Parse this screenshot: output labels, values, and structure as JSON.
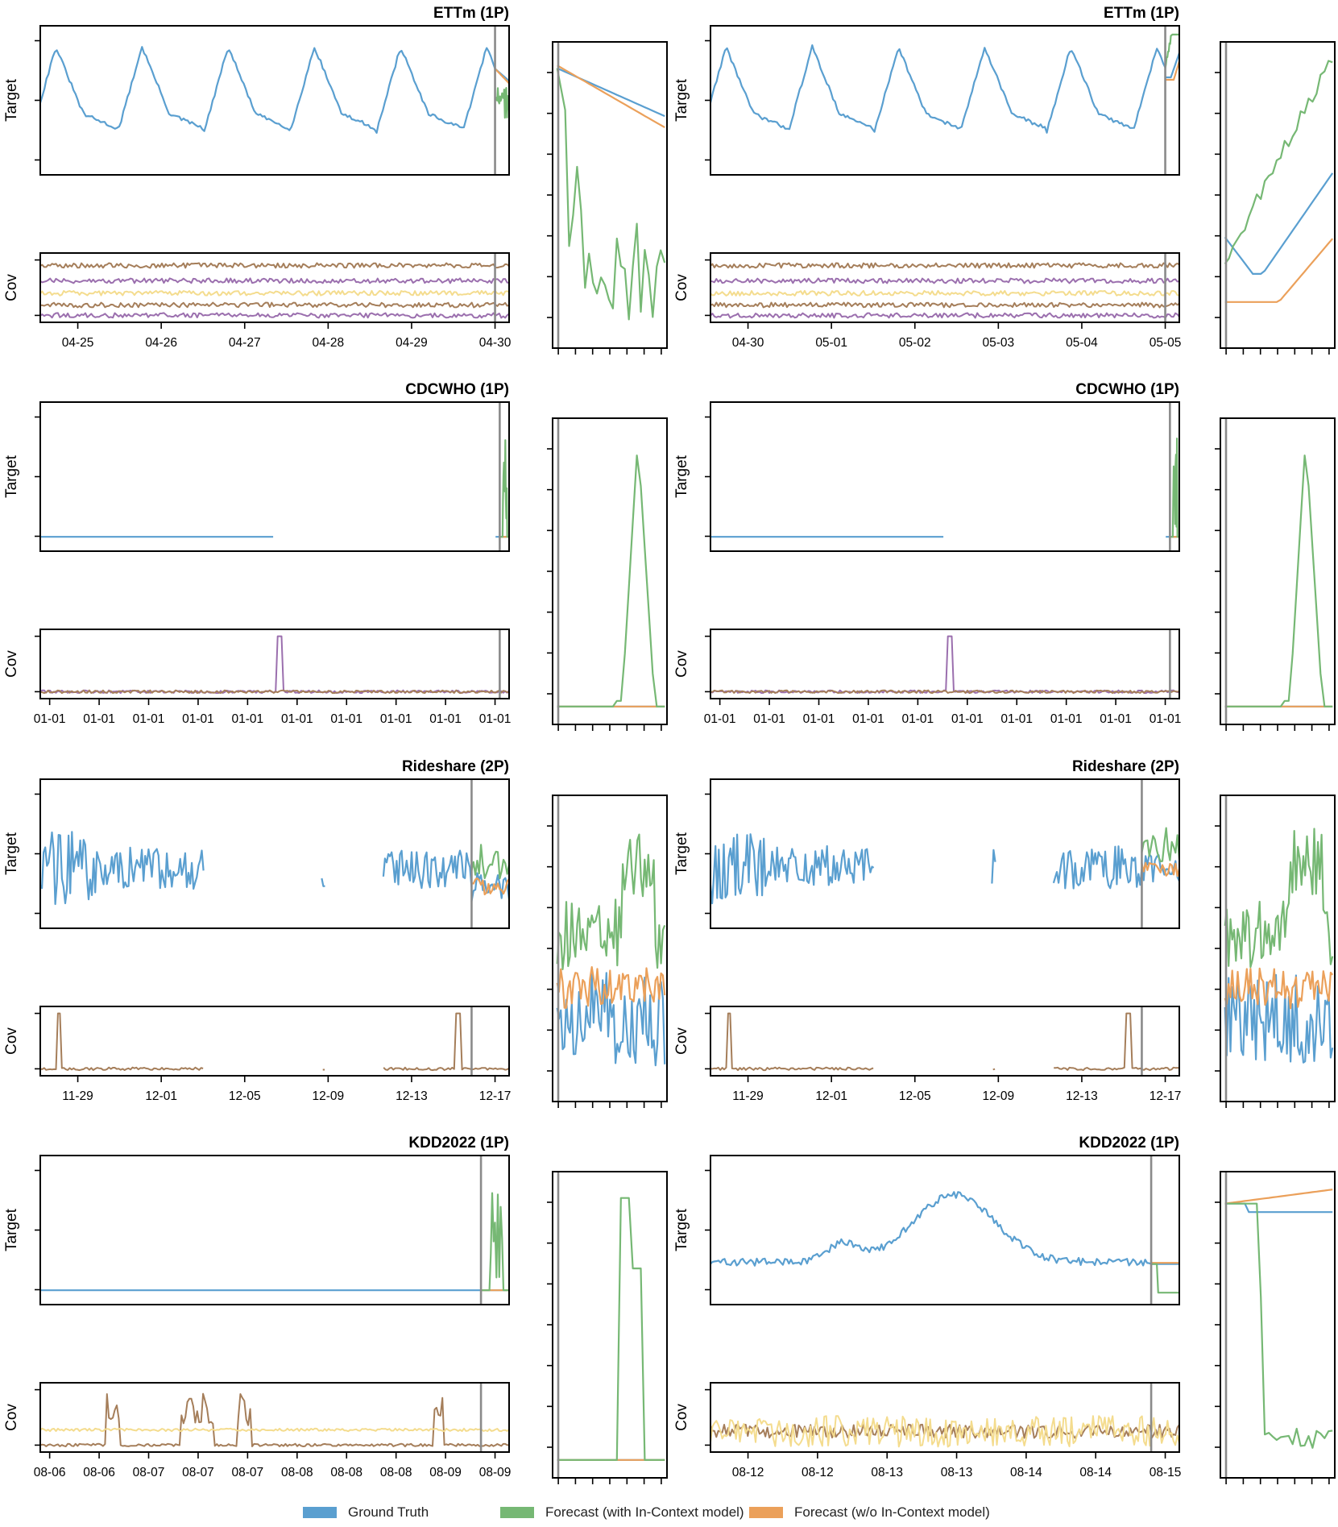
{
  "colors": {
    "ground_truth": "#5a9fd0",
    "forecast_ctx": "#76b874",
    "forecast_noctx": "#eba05a",
    "cov_brown": "#a57e5a",
    "cov_purple": "#9b6fae",
    "cov_yellow": "#f4dc8e",
    "cutoff": "#8a8a8a"
  },
  "legend": [
    {
      "label": "Ground Truth",
      "color_key": "ground_truth"
    },
    {
      "label": "Forecast (with In-Context model)",
      "color_key": "forecast_ctx"
    },
    {
      "label": "Forecast (w/o In-Context model)",
      "color_key": "forecast_noctx"
    }
  ],
  "axis_labels": {
    "target": "Target",
    "cov": "Cov"
  },
  "chart_data": [
    {
      "type": "line",
      "title": "ETTm (1P)",
      "ylabel_target": "Target",
      "ylabel_cov": "Cov",
      "x_tick_labels": [
        "04-25",
        "04-26",
        "04-27",
        "04-28",
        "04-29",
        "04-30"
      ],
      "pattern": "daily",
      "covariates": [
        "brown",
        "yellow",
        "purple",
        "brown",
        "purple"
      ],
      "gaps": [],
      "history_ends": 0.97,
      "zoom_ground_truth": "declining",
      "zoom_forecast_ctx": "sharp-drop",
      "zoom_forecast_noctx": "declining"
    },
    {
      "type": "line",
      "title": "ETTm (1P)",
      "ylabel_target": "Target",
      "ylabel_cov": "Cov",
      "x_tick_labels": [
        "04-30",
        "05-01",
        "05-02",
        "05-03",
        "05-04",
        "05-05"
      ],
      "pattern": "daily",
      "covariates": [
        "brown",
        "yellow",
        "purple",
        "brown",
        "purple"
      ],
      "gaps": [],
      "history_ends": 0.97,
      "zoom_ground_truth": "dip-then-rise",
      "zoom_forecast_ctx": "rising",
      "zoom_forecast_noctx": "flat-then-rise"
    },
    {
      "type": "line",
      "title": "CDCWHO (1P)",
      "ylabel_target": "Target",
      "ylabel_cov": "Cov",
      "x_tick_labels": [
        "01-01",
        "01-01",
        "01-01",
        "01-01",
        "01-01",
        "01-01",
        "01-01",
        "01-01",
        "01-01",
        "01-01"
      ],
      "pattern": "flat",
      "covariates": [
        "purple",
        "brown"
      ],
      "cov_spike_at": 0.51,
      "gaps": [
        [
          0.5,
          0.97
        ]
      ],
      "history_ends": 0.98,
      "zoom_forecast_ctx": "spike",
      "zoom_ground_truth": "flat",
      "zoom_forecast_noctx": "flat"
    },
    {
      "type": "line",
      "title": "CDCWHO (1P)",
      "ylabel_target": "Target",
      "ylabel_cov": "Cov",
      "x_tick_labels": [
        "01-01",
        "01-01",
        "01-01",
        "01-01",
        "01-01",
        "01-01",
        "01-01",
        "01-01",
        "01-01",
        "01-01"
      ],
      "pattern": "flat",
      "covariates": [
        "purple",
        "brown"
      ],
      "cov_spike_at": 0.51,
      "gaps": [
        [
          0.5,
          0.97
        ]
      ],
      "history_ends": 0.98,
      "zoom_forecast_ctx": "spike",
      "zoom_ground_truth": "flat",
      "zoom_forecast_noctx": "flat"
    },
    {
      "type": "line",
      "title": "Rideshare (2P)",
      "ylabel_target": "Target",
      "ylabel_cov": "Cov",
      "x_tick_labels": [
        "11-29",
        "12-01",
        "12-05",
        "12-09",
        "12-13",
        "12-17"
      ],
      "pattern": "noisy",
      "covariates": [
        "brown"
      ],
      "cov_spike_at": [
        0.04,
        0.89
      ],
      "gaps": [
        [
          0.35,
          0.6
        ],
        [
          0.61,
          0.73
        ]
      ],
      "history_ends": 0.92,
      "zoom_forecast_ctx": "noisy-high",
      "zoom_ground_truth": "noisy-low",
      "zoom_forecast_noctx": "noisy-mid"
    },
    {
      "type": "line",
      "title": "Rideshare (2P)",
      "ylabel_target": "Target",
      "ylabel_cov": "Cov",
      "x_tick_labels": [
        "11-29",
        "12-01",
        "12-05",
        "12-09",
        "12-13",
        "12-17"
      ],
      "pattern": "noisy",
      "covariates": [
        "brown"
      ],
      "cov_spike_at": [
        0.04,
        0.89
      ],
      "gaps": [
        [
          0.35,
          0.6
        ],
        [
          0.61,
          0.73
        ]
      ],
      "history_ends": 0.92,
      "zoom_forecast_ctx": "noisy-high",
      "zoom_ground_truth": "noisy-low",
      "zoom_forecast_noctx": "noisy-mid"
    },
    {
      "type": "line",
      "title": "KDD2022 (1P)",
      "ylabel_target": "Target",
      "ylabel_cov": "Cov",
      "x_tick_labels": [
        "08-06",
        "08-06",
        "08-07",
        "08-07",
        "08-07",
        "08-08",
        "08-08",
        "08-08",
        "08-09",
        "08-09"
      ],
      "pattern": "flat",
      "covariates": [
        "brown",
        "yellow"
      ],
      "gaps": [],
      "history_ends": 0.94,
      "zoom_forecast_ctx": "double-spike",
      "zoom_ground_truth": "flat",
      "zoom_forecast_noctx": "flat"
    },
    {
      "type": "line",
      "title": "KDD2022 (1P)",
      "ylabel_target": "Target",
      "ylabel_cov": "Cov",
      "x_tick_labels": [
        "08-12",
        "08-12",
        "08-13",
        "08-13",
        "08-14",
        "08-14",
        "08-15"
      ],
      "pattern": "hump",
      "covariates": [
        "brown",
        "yellow"
      ],
      "gaps": [],
      "history_ends": 0.94,
      "zoom_forecast_ctx": "drop",
      "zoom_ground_truth": "flat",
      "zoom_forecast_noctx": "slight-rise"
    }
  ]
}
